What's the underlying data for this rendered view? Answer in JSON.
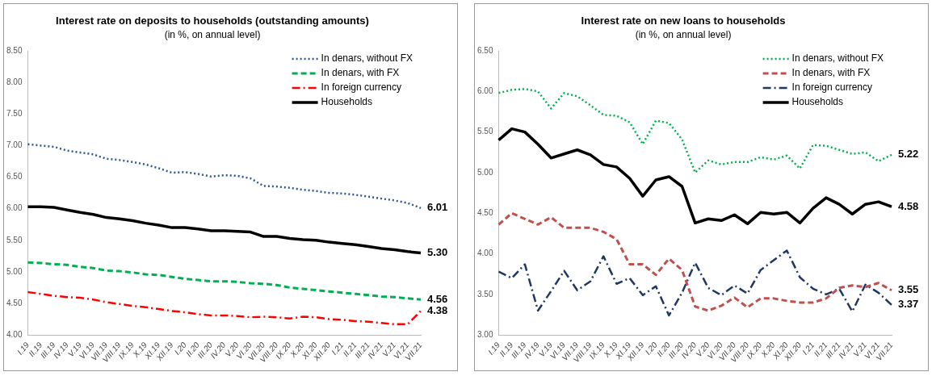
{
  "chart_data": [
    {
      "type": "line",
      "title": "Interest rate on deposits to households (outstanding amounts)",
      "subtitle": "(in %, on annual level)",
      "categories": [
        "I.19",
        "II.19",
        "III.19",
        "IV.19",
        "V.19",
        "VI.19",
        "VII.19",
        "VIII.19",
        "IX.19",
        "X.19",
        "XI.19",
        "XII.19",
        "I.20",
        "II.20",
        "III.20",
        "IV.20",
        "V.20",
        "VI.20",
        "VII.20",
        "VIII.20",
        "IX.20",
        "X.20",
        "XI.20",
        "XII.20",
        "I.21",
        "II.21",
        "III.21",
        "IV.21",
        "V.21",
        "VI.21",
        "VII.21"
      ],
      "ylim": [
        4,
        8.5
      ],
      "yticks": [
        {
          "value": 4,
          "label": "4.00"
        },
        {
          "value": 4.5,
          "label": "4.50"
        },
        {
          "value": 5,
          "label": "5.00"
        },
        {
          "value": 5.5,
          "label": "5.50"
        },
        {
          "value": 6,
          "label": "6.00"
        },
        {
          "value": 6.5,
          "label": "6.50"
        },
        {
          "value": 7,
          "label": "7.00"
        },
        {
          "value": 7.5,
          "label": "7.50"
        },
        {
          "value": 8,
          "label": "8.00"
        },
        {
          "value": 8.5,
          "label": "8.50"
        }
      ],
      "legend": "top right",
      "marker": "none",
      "series": [
        {
          "name": "In denars, without FX",
          "color": "#2f5597",
          "line_style": "dotted",
          "values": [
            7.02,
            7.0,
            6.98,
            6.92,
            6.89,
            6.86,
            6.79,
            6.77,
            6.74,
            6.7,
            6.64,
            6.57,
            6.58,
            6.55,
            6.51,
            6.53,
            6.52,
            6.48,
            6.36,
            6.35,
            6.33,
            6.3,
            6.28,
            6.25,
            6.24,
            6.22,
            6.19,
            6.16,
            6.13,
            6.09,
            6.01
          ],
          "value_labels": [
            null,
            null,
            null,
            null,
            null,
            null,
            null,
            null,
            null,
            null,
            null,
            null,
            null,
            null,
            null,
            null,
            null,
            null,
            null,
            null,
            null,
            null,
            null,
            null,
            null,
            null,
            null,
            null,
            null,
            null,
            "6.01"
          ]
        },
        {
          "name": "In denars, with FX",
          "color": "#00b050",
          "line_style": "dashed",
          "values": [
            5.15,
            5.14,
            5.12,
            5.11,
            5.08,
            5.06,
            5.02,
            5.01,
            4.99,
            4.96,
            4.95,
            4.92,
            4.89,
            4.87,
            4.85,
            4.85,
            4.84,
            4.82,
            4.81,
            4.79,
            4.75,
            4.73,
            4.71,
            4.69,
            4.67,
            4.65,
            4.63,
            4.61,
            4.6,
            4.58,
            4.56
          ],
          "value_labels": [
            null,
            null,
            null,
            null,
            null,
            null,
            null,
            null,
            null,
            null,
            null,
            null,
            null,
            null,
            null,
            null,
            null,
            null,
            null,
            null,
            null,
            null,
            null,
            null,
            null,
            null,
            null,
            null,
            null,
            null,
            "4.56"
          ]
        },
        {
          "name": "In foreign currency",
          "color": "#ff0000",
          "line_style": "dashdot",
          "values": [
            4.68,
            4.65,
            4.62,
            4.6,
            4.59,
            4.56,
            4.52,
            4.49,
            4.46,
            4.44,
            4.41,
            4.38,
            4.36,
            4.33,
            4.31,
            4.31,
            4.3,
            4.28,
            4.29,
            4.28,
            4.26,
            4.29,
            4.28,
            4.25,
            4.24,
            4.22,
            4.21,
            4.19,
            4.17,
            4.17,
            4.38
          ],
          "value_labels": [
            null,
            null,
            null,
            null,
            null,
            null,
            null,
            null,
            null,
            null,
            null,
            null,
            null,
            null,
            null,
            null,
            null,
            null,
            null,
            null,
            null,
            null,
            null,
            null,
            null,
            null,
            null,
            null,
            null,
            null,
            "4.38"
          ]
        },
        {
          "name": "Households",
          "color": "#000000",
          "line_style": "solid",
          "values": [
            6.03,
            6.03,
            6.02,
            5.98,
            5.94,
            5.91,
            5.86,
            5.84,
            5.81,
            5.77,
            5.74,
            5.7,
            5.7,
            5.68,
            5.65,
            5.65,
            5.64,
            5.63,
            5.56,
            5.56,
            5.53,
            5.51,
            5.5,
            5.47,
            5.45,
            5.43,
            5.4,
            5.37,
            5.35,
            5.32,
            5.3
          ],
          "value_labels": [
            null,
            null,
            null,
            null,
            null,
            null,
            null,
            null,
            null,
            null,
            null,
            null,
            null,
            null,
            null,
            null,
            null,
            null,
            null,
            null,
            null,
            null,
            null,
            null,
            null,
            null,
            null,
            null,
            null,
            null,
            "5.30"
          ]
        }
      ]
    },
    {
      "type": "line",
      "title": "Interest rate on new loans to households",
      "subtitle": "(in %, on annual level)",
      "categories": [
        "I.19",
        "II.19",
        "III.19",
        "IV.19",
        "V.19",
        "VI.19",
        "VII.19",
        "VIII.19",
        "IX.19",
        "X.19",
        "XI.19",
        "XII.19",
        "I.20",
        "II.20",
        "III.20",
        "IV.20",
        "V.20",
        "VI.20",
        "VII.20",
        "VIII.20",
        "IX.20",
        "X.20",
        "XI.20",
        "XII.20",
        "I.21",
        "II.21",
        "III.21",
        "IV.21",
        "V.21",
        "VI.21",
        "VII.21"
      ],
      "ylim": [
        3,
        6.5
      ],
      "yticks": [
        {
          "value": 3,
          "label": "3.00"
        },
        {
          "value": 3.5,
          "label": "3.50"
        },
        {
          "value": 4,
          "label": "4.00"
        },
        {
          "value": 4.5,
          "label": "4.50"
        },
        {
          "value": 5,
          "label": "5.00"
        },
        {
          "value": 5.5,
          "label": "5.50"
        },
        {
          "value": 6,
          "label": "6.00"
        },
        {
          "value": 6.5,
          "label": "6.50"
        }
      ],
      "legend": "top right",
      "marker": "none",
      "series": [
        {
          "name": "In denars, without FX",
          "color": "#00b050",
          "line_style": "dotted",
          "values": [
            5.98,
            6.02,
            6.03,
            6.0,
            5.79,
            5.98,
            5.94,
            5.83,
            5.71,
            5.7,
            5.62,
            5.35,
            5.64,
            5.61,
            5.41,
            5.0,
            5.15,
            5.1,
            5.13,
            5.13,
            5.19,
            5.16,
            5.21,
            5.05,
            5.34,
            5.33,
            5.28,
            5.23,
            5.25,
            5.14,
            5.22
          ],
          "value_labels": [
            null,
            null,
            null,
            null,
            null,
            null,
            null,
            null,
            null,
            null,
            null,
            null,
            null,
            null,
            null,
            null,
            null,
            null,
            null,
            null,
            null,
            null,
            null,
            null,
            null,
            null,
            null,
            null,
            null,
            null,
            "5.22"
          ]
        },
        {
          "name": "In denars, with FX",
          "color": "#c0504d",
          "line_style": "dashed",
          "values": [
            4.36,
            4.5,
            4.43,
            4.36,
            4.45,
            4.32,
            4.32,
            4.32,
            4.27,
            4.18,
            3.87,
            3.87,
            3.74,
            3.94,
            3.8,
            3.35,
            3.3,
            3.36,
            3.46,
            3.34,
            3.45,
            3.45,
            3.42,
            3.4,
            3.4,
            3.45,
            3.58,
            3.61,
            3.59,
            3.64,
            3.55
          ],
          "value_labels": [
            null,
            null,
            null,
            null,
            null,
            null,
            null,
            null,
            null,
            null,
            null,
            null,
            null,
            null,
            null,
            null,
            null,
            null,
            null,
            null,
            null,
            null,
            null,
            null,
            null,
            null,
            null,
            null,
            null,
            null,
            "3.55"
          ]
        },
        {
          "name": "In foreign currency",
          "color": "#1f3864",
          "line_style": "dashdot",
          "values": [
            3.78,
            3.7,
            3.87,
            3.3,
            3.54,
            3.79,
            3.55,
            3.66,
            3.97,
            3.63,
            3.7,
            3.49,
            3.6,
            3.24,
            3.52,
            3.89,
            3.58,
            3.49,
            3.61,
            3.51,
            3.8,
            3.92,
            4.04,
            3.71,
            3.57,
            3.5,
            3.57,
            3.29,
            3.62,
            3.52,
            3.37
          ],
          "value_labels": [
            null,
            null,
            null,
            null,
            null,
            null,
            null,
            null,
            null,
            null,
            null,
            null,
            null,
            null,
            null,
            null,
            null,
            null,
            null,
            null,
            null,
            null,
            null,
            null,
            null,
            null,
            null,
            null,
            null,
            null,
            "3.37"
          ]
        },
        {
          "name": "Households",
          "color": "#000000",
          "line_style": "solid",
          "values": [
            5.4,
            5.54,
            5.5,
            5.35,
            5.18,
            5.23,
            5.28,
            5.22,
            5.1,
            5.07,
            4.93,
            4.71,
            4.91,
            4.95,
            4.83,
            4.38,
            4.43,
            4.41,
            4.48,
            4.37,
            4.51,
            4.49,
            4.51,
            4.38,
            4.56,
            4.69,
            4.61,
            4.49,
            4.61,
            4.64,
            4.58
          ],
          "value_labels": [
            null,
            null,
            null,
            null,
            null,
            null,
            null,
            null,
            null,
            null,
            null,
            null,
            null,
            null,
            null,
            null,
            null,
            null,
            null,
            null,
            null,
            null,
            null,
            null,
            null,
            null,
            null,
            null,
            null,
            null,
            "4.58"
          ]
        }
      ]
    }
  ]
}
